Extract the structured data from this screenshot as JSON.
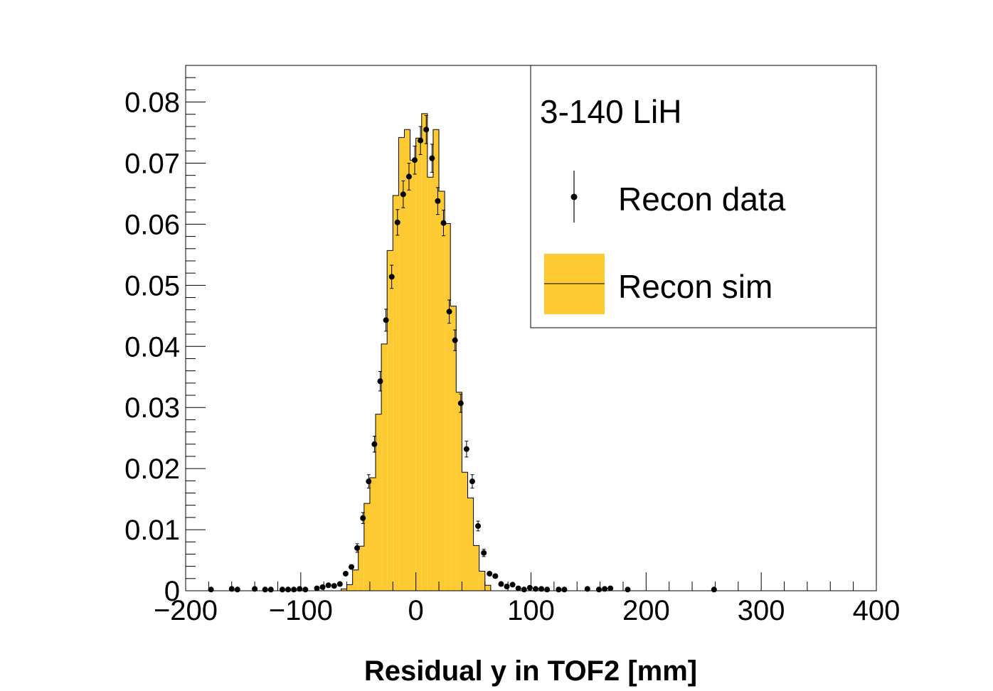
{
  "chart_data": {
    "type": "histogram",
    "xlabel": "Residual y in TOF2 [mm]",
    "ylabel": "",
    "xlim": [
      -200,
      400
    ],
    "ylim": [
      0,
      0.086
    ],
    "x_ticks": [
      -200,
      -100,
      0,
      100,
      200,
      300,
      400
    ],
    "x_tick_labels": [
      "−200",
      "−100",
      "0",
      "100",
      "200",
      "300",
      "400"
    ],
    "y_ticks": [
      0,
      0.01,
      0.02,
      0.03,
      0.04,
      0.05,
      0.06,
      0.07,
      0.08
    ],
    "y_tick_labels": [
      "0",
      "0.01",
      "0.02",
      "0.03",
      "0.04",
      "0.05",
      "0.06",
      "0.07",
      "0.08"
    ],
    "legend": {
      "header": "3-140 LiH",
      "position": "top-right",
      "entries": [
        {
          "label": "Recon data",
          "style": "marker-with-error-bar"
        },
        {
          "label": "Recon sim",
          "style": "filled-box"
        }
      ]
    },
    "colors": {
      "sim_fill": "#fdca32",
      "data_marker": "#000000"
    },
    "series": [
      {
        "name": "Recon sim",
        "bin_edges": [
          -65,
          -60,
          -55,
          -50,
          -45,
          -40,
          -35,
          -30,
          -25,
          -20,
          -15,
          -10,
          -5,
          0,
          5,
          10,
          15,
          20,
          25,
          30,
          35,
          40,
          45,
          50,
          55,
          60,
          65
        ],
        "values": [
          0.0003,
          0.001,
          0.0034,
          0.0073,
          0.0143,
          0.0185,
          0.0289,
          0.0404,
          0.0557,
          0.0647,
          0.0742,
          0.0755,
          0.0705,
          0.0741,
          0.0781,
          0.0677,
          0.0755,
          0.0654,
          0.0601,
          0.0466,
          0.0325,
          0.0194,
          0.0152,
          0.0074,
          0.0032,
          0.0009
        ]
      },
      {
        "name": "Recon data",
        "x": [
          -178,
          -160,
          -155,
          -140,
          -131,
          -126,
          -116,
          -111,
          -106,
          -101,
          -96,
          -86,
          -81,
          -76,
          -71,
          -66,
          -61,
          -56,
          -51,
          -46,
          -41,
          -36,
          -31,
          -26,
          -21,
          -16,
          -11,
          -6,
          -1,
          4,
          9,
          14,
          19,
          24,
          29,
          34,
          39,
          44,
          49,
          54,
          59,
          64,
          69,
          74,
          79,
          84,
          89,
          94,
          99,
          104,
          109,
          114,
          124,
          129,
          149,
          159,
          164,
          169,
          184,
          259
        ],
        "y": [
          0.0002,
          0.0003,
          0.0002,
          0.0003,
          0.0002,
          0.0002,
          0.0002,
          0.0002,
          0.0002,
          0.0003,
          0.0002,
          0.0004,
          0.0006,
          0.0009,
          0.0008,
          0.0011,
          0.0028,
          0.0039,
          0.007,
          0.0119,
          0.0179,
          0.024,
          0.0343,
          0.0443,
          0.0514,
          0.0603,
          0.0649,
          0.0678,
          0.0705,
          0.0737,
          0.0755,
          0.0708,
          0.0638,
          0.0602,
          0.0457,
          0.041,
          0.0307,
          0.0232,
          0.0179,
          0.0106,
          0.0062,
          0.0028,
          0.0024,
          0.0011,
          0.0007,
          0.001,
          0.0004,
          0.0002,
          0.0005,
          0.0003,
          0.0003,
          0.0002,
          0.0002,
          0.0002,
          0.0003,
          0.0002,
          0.0003,
          0.0004,
          0.0002,
          0.0002
        ],
        "err": [
          0.0002,
          0.0002,
          0.0002,
          0.0002,
          0.0002,
          0.0002,
          0.0002,
          0.0002,
          0.0002,
          0.0002,
          0.0002,
          0.0002,
          0.0002,
          0.0002,
          0.0002,
          0.0003,
          0.0004,
          0.0005,
          0.0007,
          0.0009,
          0.0011,
          0.0013,
          0.0016,
          0.0018,
          0.0019,
          0.0021,
          0.0022,
          0.0022,
          0.0023,
          0.0023,
          0.0023,
          0.0023,
          0.0022,
          0.0021,
          0.0019,
          0.0017,
          0.0015,
          0.0013,
          0.0011,
          0.0008,
          0.0006,
          0.0004,
          0.0003,
          0.0003,
          0.0002,
          0.0003,
          0.0002,
          0.0002,
          0.0002,
          0.0002,
          0.0002,
          0.0002,
          0.0002,
          0.0002,
          0.0002,
          0.0002,
          0.0002,
          0.0002,
          0.0002,
          0.0002
        ]
      }
    ]
  }
}
